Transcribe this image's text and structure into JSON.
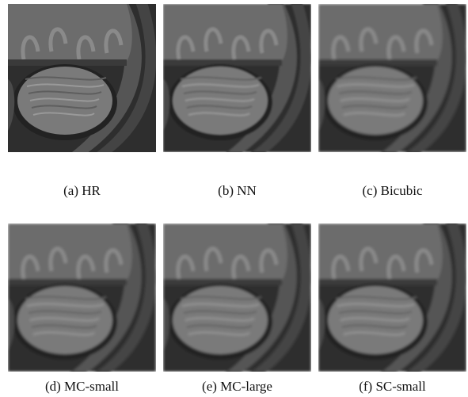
{
  "figure": {
    "panels": [
      {
        "caption": "(a) HR"
      },
      {
        "caption": "(b) NN"
      },
      {
        "caption": "(c) Bicubic"
      },
      {
        "caption": "(d) MC-small"
      },
      {
        "caption": "(e) MC-large"
      },
      {
        "caption": "(f) SC-small"
      }
    ]
  }
}
